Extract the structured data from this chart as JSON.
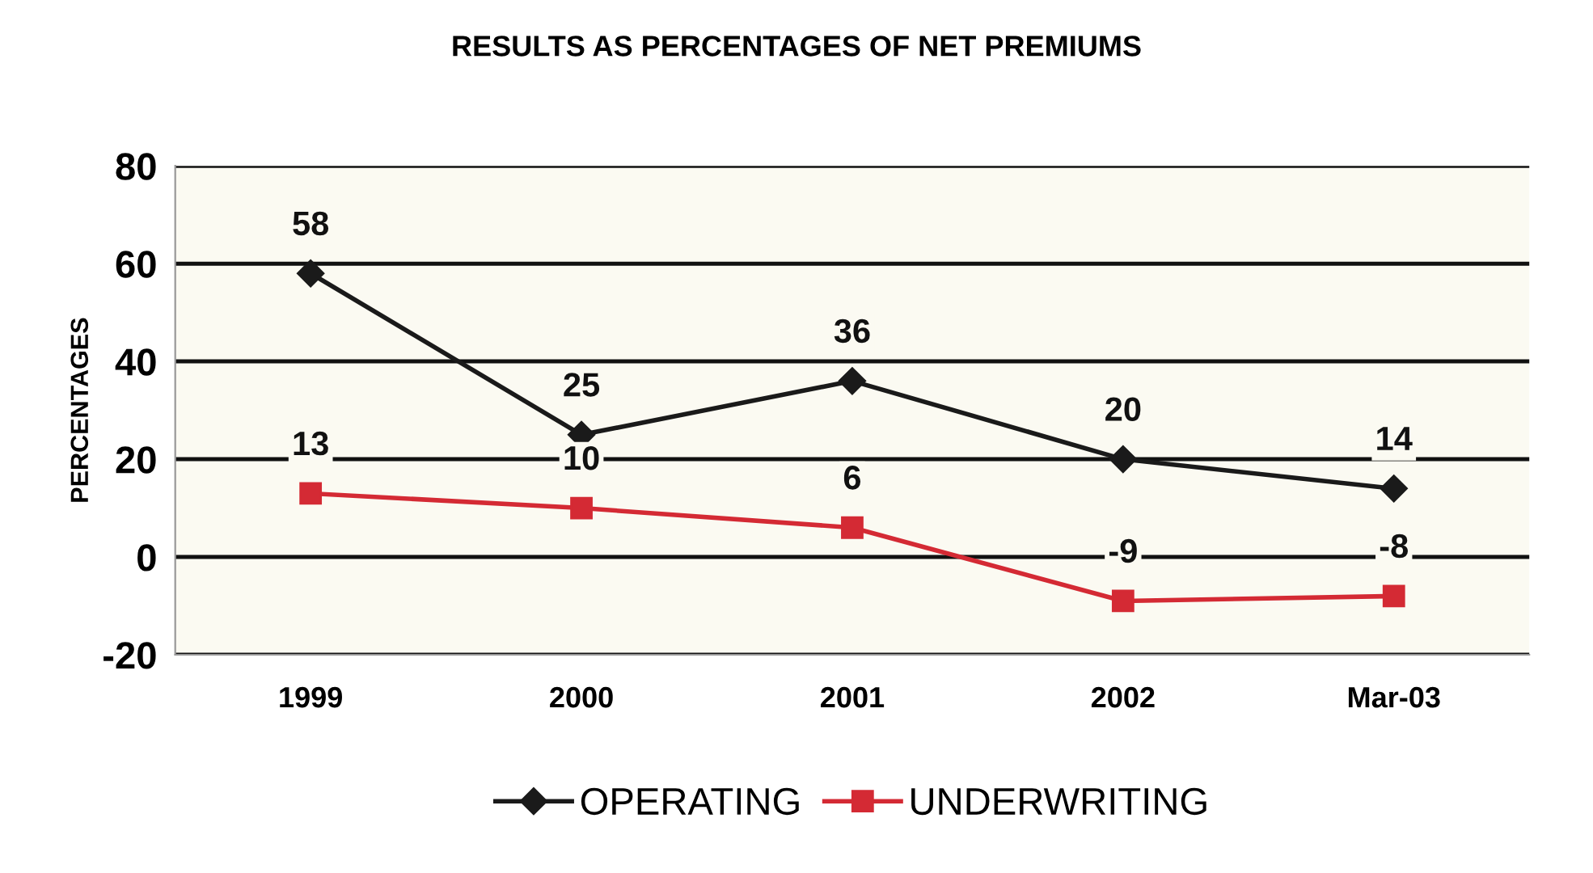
{
  "chart_data": {
    "type": "line",
    "title": "RESULTS AS PERCENTAGES OF NET PREMIUMS",
    "ylabel": "PERCENTAGES",
    "categories": [
      "1999",
      "2000",
      "2001",
      "2002",
      "Mar-03"
    ],
    "series": [
      {
        "name": "OPERATING",
        "color": "#1a1a1a",
        "marker": "diamond",
        "values": [
          58,
          25,
          36,
          20,
          14
        ]
      },
      {
        "name": "UNDERWRITING",
        "color": "#d42a34",
        "marker": "square",
        "values": [
          13,
          10,
          6,
          -9,
          -8
        ]
      }
    ],
    "ylim": [
      -20,
      80
    ],
    "yticks": [
      -20,
      0,
      20,
      40,
      60,
      80
    ],
    "grid": "y",
    "legend": "bottom",
    "data_labels": true,
    "line_style": "solid"
  }
}
